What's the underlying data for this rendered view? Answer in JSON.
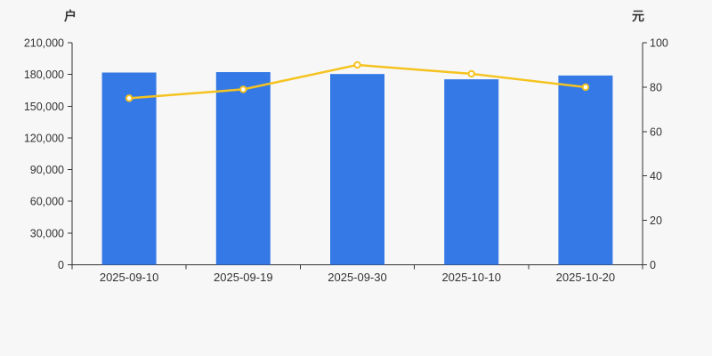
{
  "page": {
    "background_color": "#f7f7f7"
  },
  "chart_data": {
    "type": "bar",
    "title": "",
    "grid": false,
    "legend": false,
    "axis_color": "#333333",
    "text_color": "#333333",
    "categories": [
      "2025-09-10",
      "2025-09-19",
      "2025-09-30",
      "2025-10-10",
      "2025-10-20"
    ],
    "series": [
      {
        "name": "户",
        "type": "bar",
        "axis": "left",
        "color": "#3579e6",
        "values": [
          181800,
          182200,
          180400,
          175400,
          179000
        ]
      },
      {
        "name": "元",
        "type": "line",
        "axis": "right",
        "color": "#f5c31f",
        "marker": "hollow-circle",
        "marker_fill": "#ffffff",
        "values": [
          75,
          79,
          90,
          86,
          80
        ]
      }
    ],
    "left_axis": {
      "name": "户",
      "range": [
        0,
        210000
      ],
      "tick_interval": 30000,
      "tick_values": [
        0,
        30000,
        60000,
        90000,
        120000,
        150000,
        180000,
        210000
      ],
      "tick_labels": [
        "0",
        "30,000",
        "60,000",
        "90,000",
        "120,000",
        "150,000",
        "180,000",
        "210,000"
      ]
    },
    "right_axis": {
      "name": "元",
      "range": [
        0,
        100
      ],
      "tick_interval": 20,
      "tick_values": [
        0,
        20,
        40,
        60,
        80,
        100
      ],
      "tick_labels": [
        "0",
        "20",
        "40",
        "60",
        "80",
        "100"
      ]
    }
  }
}
